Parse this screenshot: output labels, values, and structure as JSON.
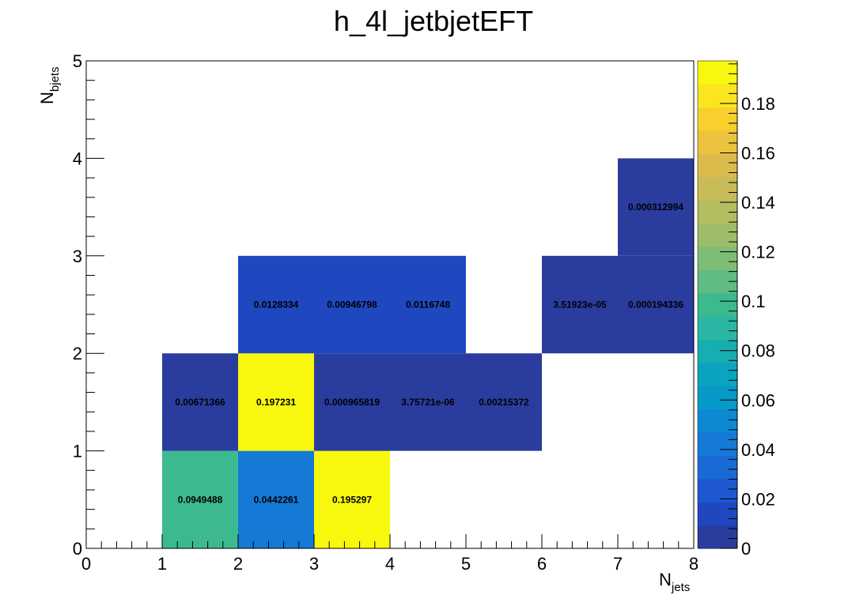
{
  "chart_data": {
    "type": "heatmap",
    "title": "h_4l_jetbjetEFT",
    "xlabel": {
      "main": "N",
      "sub": "jets"
    },
    "ylabel": {
      "main": "N",
      "sub": "bjets"
    },
    "xlim": [
      0,
      8
    ],
    "ylim": [
      0,
      5
    ],
    "x_ticks": [
      "0",
      "1",
      "2",
      "3",
      "4",
      "5",
      "6",
      "7",
      "8"
    ],
    "y_ticks": [
      "0",
      "1",
      "2",
      "3",
      "4",
      "5"
    ],
    "grid": false,
    "colorbar": {
      "min": 0,
      "max": 0.197231,
      "ticks": [
        {
          "value": 0,
          "label": "0"
        },
        {
          "value": 0.02,
          "label": "0.02"
        },
        {
          "value": 0.04,
          "label": "0.04"
        },
        {
          "value": 0.06,
          "label": "0.06"
        },
        {
          "value": 0.08,
          "label": "0.08"
        },
        {
          "value": 0.1,
          "label": "0.1"
        },
        {
          "value": 0.12,
          "label": "0.12"
        },
        {
          "value": 0.14,
          "label": "0.14"
        },
        {
          "value": 0.16,
          "label": "0.16"
        },
        {
          "value": 0.18,
          "label": "0.18"
        }
      ],
      "palette": [
        "#2a3c9e",
        "#1f48c0",
        "#1d58d0",
        "#1a6ad6",
        "#1579d6",
        "#0d89d3",
        "#079ac9",
        "#0aa4c0",
        "#17aeb2",
        "#2ab6a2",
        "#3db98f",
        "#5fbc82",
        "#7ebd75",
        "#9dbd6a",
        "#b4bd60",
        "#c9bb57",
        "#dbbb4c",
        "#ecc33f",
        "#f8cf2c",
        "#fbe51e",
        "#f8f80e"
      ]
    },
    "cells": [
      {
        "x": 1.5,
        "y": 0.5,
        "value": 0.0949488,
        "label": "0.0949488"
      },
      {
        "x": 2.5,
        "y": 0.5,
        "value": 0.0442261,
        "label": "0.0442261"
      },
      {
        "x": 3.5,
        "y": 0.5,
        "value": 0.195297,
        "label": "0.195297"
      },
      {
        "x": 1.5,
        "y": 1.5,
        "value": 0.00671366,
        "label": "0.00671366"
      },
      {
        "x": 2.5,
        "y": 1.5,
        "value": 0.197231,
        "label": "0.197231"
      },
      {
        "x": 3.5,
        "y": 1.5,
        "value": 0.000965819,
        "label": "0.000965819"
      },
      {
        "x": 4.5,
        "y": 1.5,
        "value": 3.75721e-06,
        "label": "3.75721e-06"
      },
      {
        "x": 5.5,
        "y": 1.5,
        "value": 0.00215372,
        "label": "0.00215372"
      },
      {
        "x": 2.5,
        "y": 2.5,
        "value": 0.0128334,
        "label": "0.0128334"
      },
      {
        "x": 3.5,
        "y": 2.5,
        "value": 0.00946798,
        "label": "0.00946798"
      },
      {
        "x": 4.5,
        "y": 2.5,
        "value": 0.0116748,
        "label": "0.0116748"
      },
      {
        "x": 6.5,
        "y": 2.5,
        "value": 3.51923e-05,
        "label": "3.51923e-05"
      },
      {
        "x": 7.5,
        "y": 2.5,
        "value": 0.000194336,
        "label": "0.000194336"
      },
      {
        "x": 7.5,
        "y": 3.5,
        "value": 0.000312994,
        "label": "0.000312994"
      }
    ]
  }
}
